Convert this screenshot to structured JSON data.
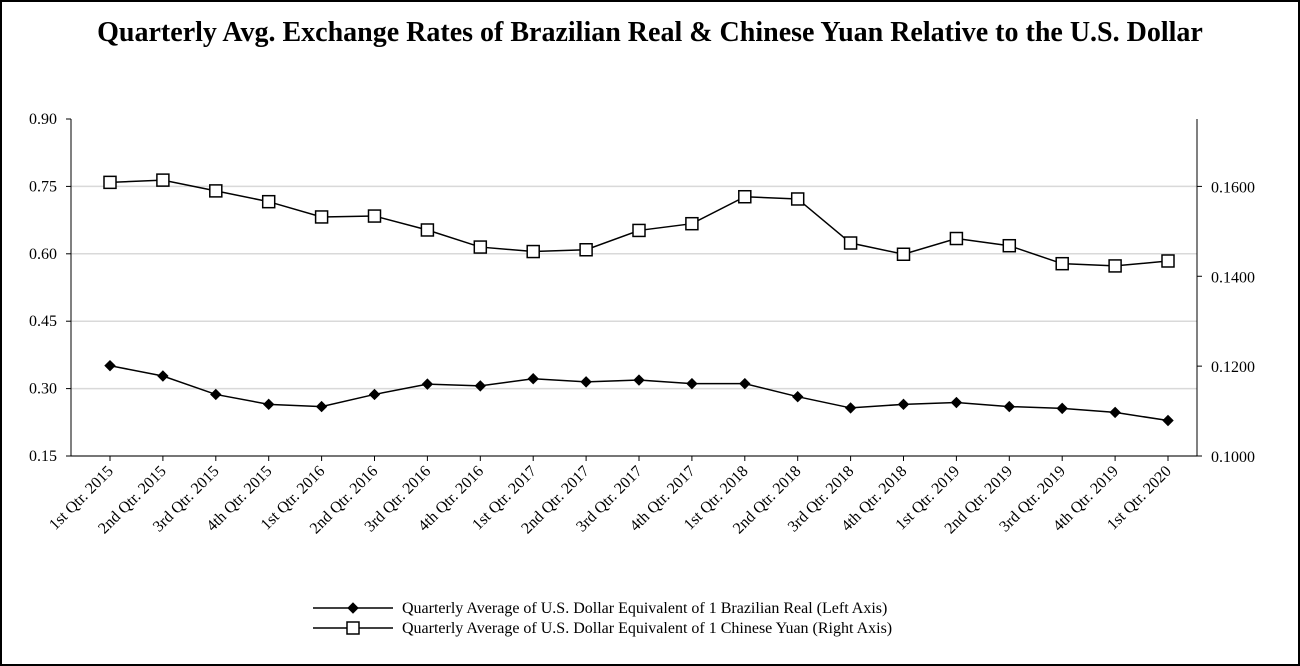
{
  "chart_data": {
    "type": "line",
    "title": "Quarterly Avg. Exchange Rates of Brazilian Real & Chinese Yuan Relative to the U.S. Dollar",
    "categories": [
      "1st Qtr. 2015",
      "2nd Qtr. 2015",
      "3rd Qtr. 2015",
      "4th Qtr. 2015",
      "1st Qtr. 2016",
      "2nd Qtr. 2016",
      "3rd Qtr. 2016",
      "4th Qtr. 2016",
      "1st Qtr. 2017",
      "2nd Qtr. 2017",
      "3rd Qtr. 2017",
      "4th Qtr. 2017",
      "1st Qtr. 2018",
      "2nd Qtr. 2018",
      "3rd Qtr. 2018",
      "4th Qtr. 2018",
      "1st Qtr. 2019",
      "2nd Qtr. 2019",
      "3rd Qtr. 2019",
      "4th Qtr. 2019",
      "1st Qtr. 2020"
    ],
    "left_axis": {
      "ylim": [
        0.15,
        0.9
      ],
      "ticks": [
        "0.90",
        "0.75",
        "0.60",
        "0.45",
        "0.30",
        "0.15"
      ]
    },
    "right_axis": {
      "ylim": [
        0.1,
        0.175
      ],
      "ticks": [
        "0.1600",
        "0.1400",
        "0.1200",
        "0.1000"
      ]
    },
    "grid": true,
    "legend_position": "bottom",
    "series": [
      {
        "name": "Quarterly Average of U.S. Dollar Equivalent of 1 Brazilian Real (Left Axis)",
        "axis": "left",
        "marker": "filled-diamond",
        "values": [
          0.351,
          0.328,
          0.287,
          0.265,
          0.26,
          0.287,
          0.31,
          0.306,
          0.322,
          0.315,
          0.319,
          0.311,
          0.311,
          0.282,
          0.257,
          0.265,
          0.269,
          0.26,
          0.256,
          0.247,
          0.229
        ]
      },
      {
        "name": "Quarterly Average of U.S. Dollar Equivalent of 1 Chinese Yuan (Right Axis)",
        "axis": "right",
        "marker": "open-square",
        "values": [
          0.1609,
          0.1614,
          0.159,
          0.1566,
          0.1532,
          0.1534,
          0.1503,
          0.1465,
          0.1455,
          0.1459,
          0.1502,
          0.1517,
          0.1577,
          0.1572,
          0.1474,
          0.1449,
          0.1484,
          0.1468,
          0.1428,
          0.1423,
          0.1434
        ]
      }
    ]
  }
}
